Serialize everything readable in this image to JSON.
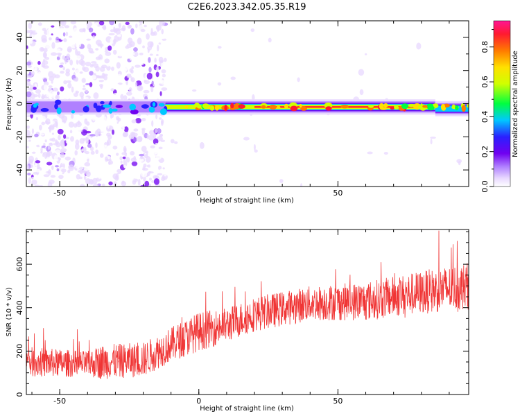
{
  "figure_title": "C2E6.2023.342.05.35.R19",
  "chart_data": [
    {
      "type": "heatmap",
      "title": "",
      "xlabel": "Height of straight line (km)",
      "ylabel": "Frequency (Hz)",
      "xlim": [
        -62,
        97
      ],
      "ylim": [
        -50,
        50
      ],
      "x_ticks": [
        -50,
        0,
        50
      ],
      "y_ticks": [
        40,
        20,
        0,
        -20,
        -40
      ],
      "colorbar": {
        "label": "Normalized spectral amplitude",
        "range": [
          0.0,
          0.95
        ],
        "ticks": [
          0.0,
          0.2,
          0.4,
          0.6,
          0.8
        ],
        "colormap": [
          "#ffffff",
          "#e8d8ff",
          "#b080ff",
          "#7000f0",
          "#2a20ff",
          "#00c8ff",
          "#00ff40",
          "#d0ff00",
          "#ffe000",
          "#ff7a00",
          "#ff1a30",
          "#ff1493"
        ]
      },
      "ridge": {
        "description_level_segments": [
          {
            "x_range": [
              -62,
              -12
            ],
            "freq_hz": -2,
            "amplitude": 0.15
          },
          {
            "x_range": [
              -12,
              20
            ],
            "freq_hz": -2,
            "amplitude": 0.55
          },
          {
            "x_range": [
              20,
              85
            ],
            "freq_hz": -2,
            "amplitude": 0.85
          },
          {
            "x_range": [
              85,
              97
            ],
            "freq_hz": -3,
            "amplitude": 0.5
          }
        ],
        "scatter_noise_region": [
          -62,
          -12
        ]
      }
    },
    {
      "type": "line",
      "title": "",
      "xlabel": "Height of straight line (km)",
      "ylabel": "SNR (10 * v/v)",
      "xlim": [
        -62,
        97
      ],
      "ylim": [
        0,
        760
      ],
      "x_ticks": [
        -50,
        0,
        50
      ],
      "y_ticks": [
        0,
        200,
        400,
        600
      ],
      "series": [
        {
          "color": "#f03535",
          "trend": {
            "x": [
              -62,
              -40,
              -35,
              -20,
              -10,
              0,
              10,
              20,
              40,
              60,
              80,
              97
            ],
            "mean": [
              150,
              140,
              150,
              160,
              230,
              290,
              320,
              370,
              420,
              430,
              470,
              500
            ],
            "spread": [
              70,
              60,
              80,
              80,
              80,
              90,
              80,
              80,
              80,
              90,
              100,
              110
            ]
          }
        }
      ]
    }
  ]
}
